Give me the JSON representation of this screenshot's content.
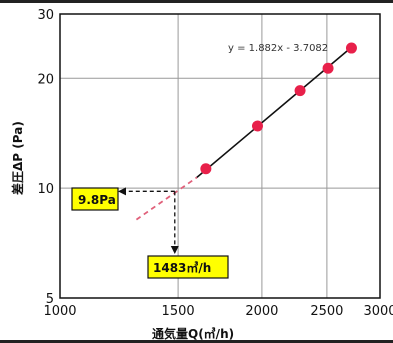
{
  "chart_data": {
    "type": "scatter",
    "title": "",
    "xlabel": "通気量Q(㎥/h)",
    "ylabel": "差圧ΔP (Pa)",
    "x_scale": "log",
    "y_scale": "log",
    "xlim": [
      1000,
      3000
    ],
    "ylim": [
      5,
      30
    ],
    "x_ticks": [
      "1000",
      "1500",
      "2000",
      "2500",
      "3000"
    ],
    "y_ticks": [
      "5",
      "10",
      "20",
      "30"
    ],
    "grid": true,
    "series": [
      {
        "points": [
          {
            "x": 1650,
            "y": 11.3
          },
          {
            "x": 1970,
            "y": 14.8
          },
          {
            "x": 2280,
            "y": 18.5
          },
          {
            "x": 2510,
            "y": 21.3
          },
          {
            "x": 2720,
            "y": 24.2
          }
        ]
      }
    ],
    "fit_line": {
      "from": [
        1600,
        10.7
      ],
      "to": [
        2740,
        24.6
      ]
    },
    "extrapolation": {
      "from": [
        1300,
        8.2
      ],
      "to": [
        1600,
        10.7
      ]
    },
    "equation": "y = 1.882x - 3.7082",
    "annotation": {
      "x": 1483,
      "y": 9.8,
      "y_label": "9.8Pa",
      "x_label": "1483㎥/h"
    },
    "colors": {
      "point": "#e8204a",
      "line": "#111111",
      "extrapolation": "#e0607a",
      "label_bg": "#ffff00",
      "grid": "#999999"
    }
  }
}
